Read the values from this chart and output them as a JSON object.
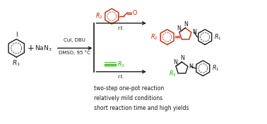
{
  "background_color": "#ffffff",
  "fig_width": 3.78,
  "fig_height": 1.76,
  "dpi": 100,
  "black": "#1a1a1a",
  "red": "#cc2200",
  "green": "#22aa00",
  "bullet_points": [
    "two-step one-pot reaction",
    "relatively mild conditions",
    "short reaction time and high yields"
  ],
  "cond1": "CuI, DBU",
  "cond2": "DMSO, 95 °C",
  "rt": "r.t."
}
